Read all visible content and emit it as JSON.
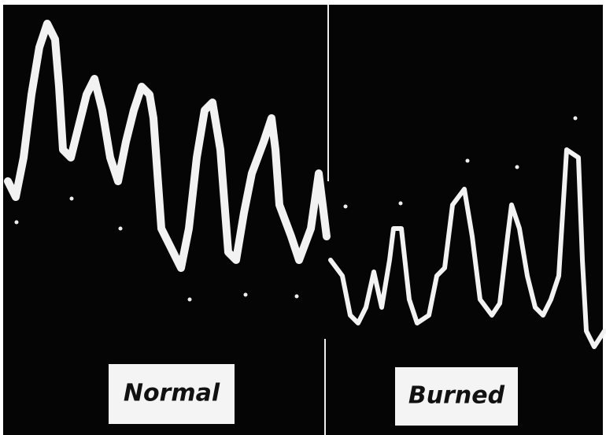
{
  "labels": {
    "left": "Normal",
    "right": "Burned"
  }
}
